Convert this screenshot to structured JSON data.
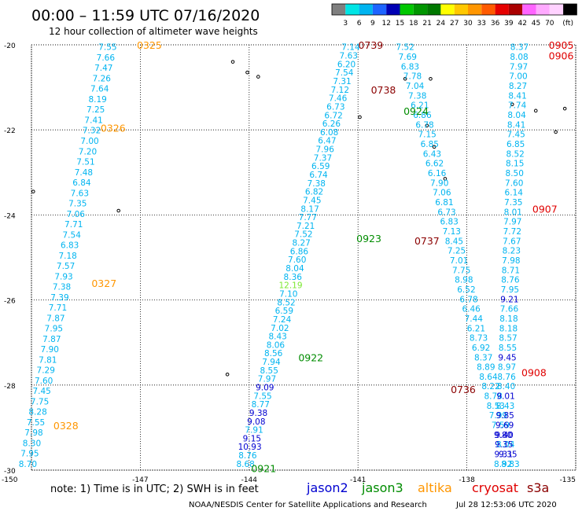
{
  "title": "00:00 – 11:59 UTC 07/16/2020",
  "subtitle": "12 hour collection of altimeter wave heights",
  "color_scale": {
    "unit": "(ft)",
    "colors": [
      "#7f7f7f",
      "#00e5e5",
      "#00b4f0",
      "#1e64ff",
      "#0000b4",
      "#00c800",
      "#009600",
      "#007800",
      "#ffff00",
      "#ffc800",
      "#ff9600",
      "#ff5a00",
      "#e60000",
      "#aa0000",
      "#ff64ff",
      "#ffaaff",
      "#ffd2ff",
      "#000000"
    ],
    "labels": [
      "3",
      "6",
      "9",
      "12",
      "15",
      "18",
      "21",
      "24",
      "27",
      "30",
      "33",
      "36",
      "39",
      "42",
      "45",
      "70"
    ]
  },
  "footer": {
    "note": "note:  1) Time is in UTC; 2) SWH is in feet",
    "credit": "NOAA/NESDIS Center for Satellite Applications and Research",
    "timestamp": "Jul 28 12:53:06 UTC 2020"
  },
  "legend": [
    {
      "name": "jason2",
      "color": "#0000d0"
    },
    {
      "name": "jason3",
      "color": "#008c00"
    },
    {
      "name": "altika",
      "color": "#ff9600"
    },
    {
      "name": "cryosat",
      "color": "#e00000"
    },
    {
      "name": "s3a",
      "color": "#8b0000"
    }
  ],
  "chart_data": {
    "type": "scatter",
    "xlim": [
      -150,
      -135
    ],
    "ylim": [
      -30,
      -20
    ],
    "x_ticks": [
      "-150",
      "-147",
      "-144",
      "-141",
      "-138",
      "-135"
    ],
    "y_ticks": [
      "-20",
      "-22",
      "-24",
      "-26",
      "-28",
      "-30"
    ],
    "grid": true,
    "tracks": [
      {
        "satellite": "altika",
        "color": "#00b4f0",
        "lon_top": -147.9,
        "lat_top": -20.05,
        "lon_bot": -150.1,
        "lat_bot": -29.85,
        "values": [
          "7.55",
          "7.66",
          "7.47",
          "7.26",
          "7.64",
          "8.19",
          "7.25",
          "7.41",
          "7.32",
          "7.00",
          "7.20",
          "7.51",
          "7.48",
          "6.84",
          "7.63",
          "7.35",
          "7.06",
          "7.71",
          "7.54",
          "6.83",
          "7.18",
          "7.57",
          "7.93",
          "7.38",
          "7.39",
          "7.71",
          "7.87",
          "7.95",
          "7.87",
          "7.90",
          "7.81",
          "7.29",
          "7.60",
          "7.45",
          "7.75",
          "8.28",
          "7.55",
          "7.98",
          "8.30",
          "7.95",
          "8.70"
        ]
      },
      {
        "satellite": "jason3",
        "color": "#00b4f0",
        "lon_top": -141.2,
        "lat_top": -20.05,
        "lon_bot": -144.1,
        "lat_bot": -29.85,
        "values": [
          "7.14",
          "7.63",
          "6.20",
          "7.54",
          "7.31",
          "7.12",
          "7.46",
          "6.73",
          "6.72",
          "6.26",
          "6.08",
          "6.47",
          "7.96",
          "7.37",
          "6.59",
          "6.74",
          "7.38",
          "6.82",
          "7.45",
          "8.17",
          "7.77",
          "7.21",
          "7.52",
          "8.27",
          "6.86",
          "7.60",
          "8.04",
          "8.36",
          "12.19",
          "7.10",
          "8.52",
          "6.59",
          "7.24",
          "7.02",
          "8.43",
          "8.06",
          "8.56",
          "7.94",
          "8.55",
          "7.97",
          "9.09",
          "7.55",
          "8.77",
          "9.38",
          "9.08",
          "7.91",
          "9.15",
          "10.93",
          "8.76",
          "8.68"
        ],
        "colors": {
          "12.19": "#7ce832",
          "9.09": "#0000d0",
          "9.38": "#0000d0",
          "9.08": "#0000d0",
          "9.15": "#0000d0",
          "10.93": "#0000d0"
        }
      },
      {
        "satellite": "s3a",
        "color": "#00b4f0",
        "lon_top": -139.7,
        "lat_top": -20.05,
        "lon_bot": -136.8,
        "lat_bot": -29.85,
        "values": [
          "7.52",
          "7.69",
          "6.83",
          "7.78",
          "7.04",
          "7.38",
          "6.21",
          "6.86",
          "6.78",
          "7.15",
          "6.85",
          "6.43",
          "6.62",
          "6.16",
          "7.90",
          "7.06",
          "6.81",
          "6.73",
          "6.83",
          "7.13",
          "8.45",
          "7.25",
          "7.01",
          "7.75",
          "8.98",
          "6.52",
          "6.78",
          "6.46",
          "7.44",
          "6.21",
          "8.73",
          "6.92",
          "8.37",
          "8.89",
          "8.64",
          "8.22",
          "8.78",
          "8.53",
          "7.99",
          "7.59",
          "9.80",
          "8.04",
          "9.35",
          "8.83"
        ],
        "colors": {
          "9.80": "#0000d0",
          "9.35": "#0000d0"
        }
      },
      {
        "satellite": "cryosat",
        "color": "#00b4f0",
        "lon_top": -136.55,
        "lat_top": -20.05,
        "lon_bot": -137.0,
        "lat_bot": -29.85,
        "values": [
          "8.37",
          "8.08",
          "7.97",
          "7.00",
          "8.27",
          "8.41",
          "7.74",
          "8.04",
          "8.41",
          "7.45",
          "6.85",
          "8.52",
          "8.15",
          "8.50",
          "7.60",
          "6.14",
          "7.35",
          "8.01",
          "7.97",
          "7.72",
          "7.67",
          "8.23",
          "7.98",
          "8.71",
          "8.76",
          "7.95",
          "9.21",
          "7.66",
          "8.18",
          "8.18",
          "8.57",
          "8.55",
          "9.45",
          "8.97",
          "8.76",
          "8.40",
          "9.01",
          "8.43",
          "9.85",
          "9.69",
          "9.40",
          "9.35",
          "9.31",
          "8.92"
        ],
        "colors": {
          "9.21": "#0000d0",
          "9.45": "#0000d0",
          "9.01": "#0000d0",
          "9.85": "#0000d0",
          "9.69": "#0000d0",
          "9.40": "#0000d0",
          "9.35": "#0000d0",
          "9.31": "#0000d0"
        }
      }
    ],
    "time_labels": [
      {
        "text": "0325",
        "lon": -146.75,
        "lat": -20.0,
        "color": "#ff9600"
      },
      {
        "text": "0326",
        "lon": -147.75,
        "lat": -21.95,
        "color": "#ff9600"
      },
      {
        "text": "0327",
        "lon": -148.0,
        "lat": -25.6,
        "color": "#ff9600"
      },
      {
        "text": "0328",
        "lon": -149.05,
        "lat": -28.95,
        "color": "#ff9600"
      },
      {
        "text": "0739",
        "lon": -140.65,
        "lat": -20.0,
        "color": "#8b0000"
      },
      {
        "text": "0738",
        "lon": -140.3,
        "lat": -21.05,
        "color": "#8b0000"
      },
      {
        "text": "0737",
        "lon": -139.1,
        "lat": -24.6,
        "color": "#8b0000"
      },
      {
        "text": "0736",
        "lon": -138.1,
        "lat": -28.1,
        "color": "#8b0000"
      },
      {
        "text": "0924",
        "lon": -139.4,
        "lat": -21.55,
        "color": "#008c00"
      },
      {
        "text": "0923",
        "lon": -140.7,
        "lat": -24.55,
        "color": "#008c00"
      },
      {
        "text": "0922",
        "lon": -142.3,
        "lat": -27.35,
        "color": "#008c00"
      },
      {
        "text": "0921",
        "lon": -143.6,
        "lat": -29.95,
        "color": "#008c00"
      },
      {
        "text": "0905",
        "lon": -135.4,
        "lat": -20.0,
        "color": "#e00000"
      },
      {
        "text": "0906",
        "lon": -135.4,
        "lat": -20.25,
        "color": "#e00000"
      },
      {
        "text": "0907",
        "lon": -135.85,
        "lat": -23.85,
        "color": "#e00000"
      },
      {
        "text": "0908",
        "lon": -136.15,
        "lat": -27.7,
        "color": "#e00000"
      }
    ],
    "islands": [
      {
        "lon": -144.45,
        "lat": -20.4
      },
      {
        "lon": -144.05,
        "lat": -20.65
      },
      {
        "lon": -143.75,
        "lat": -20.75
      },
      {
        "lon": -139.7,
        "lat": -20.8
      },
      {
        "lon": -139.0,
        "lat": -20.8
      },
      {
        "lon": -140.95,
        "lat": -21.7
      },
      {
        "lon": -139.1,
        "lat": -21.9
      },
      {
        "lon": -138.9,
        "lat": -22.4
      },
      {
        "lon": -136.75,
        "lat": -21.4
      },
      {
        "lon": -136.1,
        "lat": -21.55
      },
      {
        "lon": -135.3,
        "lat": -21.5
      },
      {
        "lon": -135.55,
        "lat": -22.05
      },
      {
        "lon": -138.6,
        "lat": -23.15
      },
      {
        "lon": -149.95,
        "lat": -23.45
      },
      {
        "lon": -147.6,
        "lat": -23.9
      },
      {
        "lon": -144.6,
        "lat": -27.75
      }
    ]
  }
}
